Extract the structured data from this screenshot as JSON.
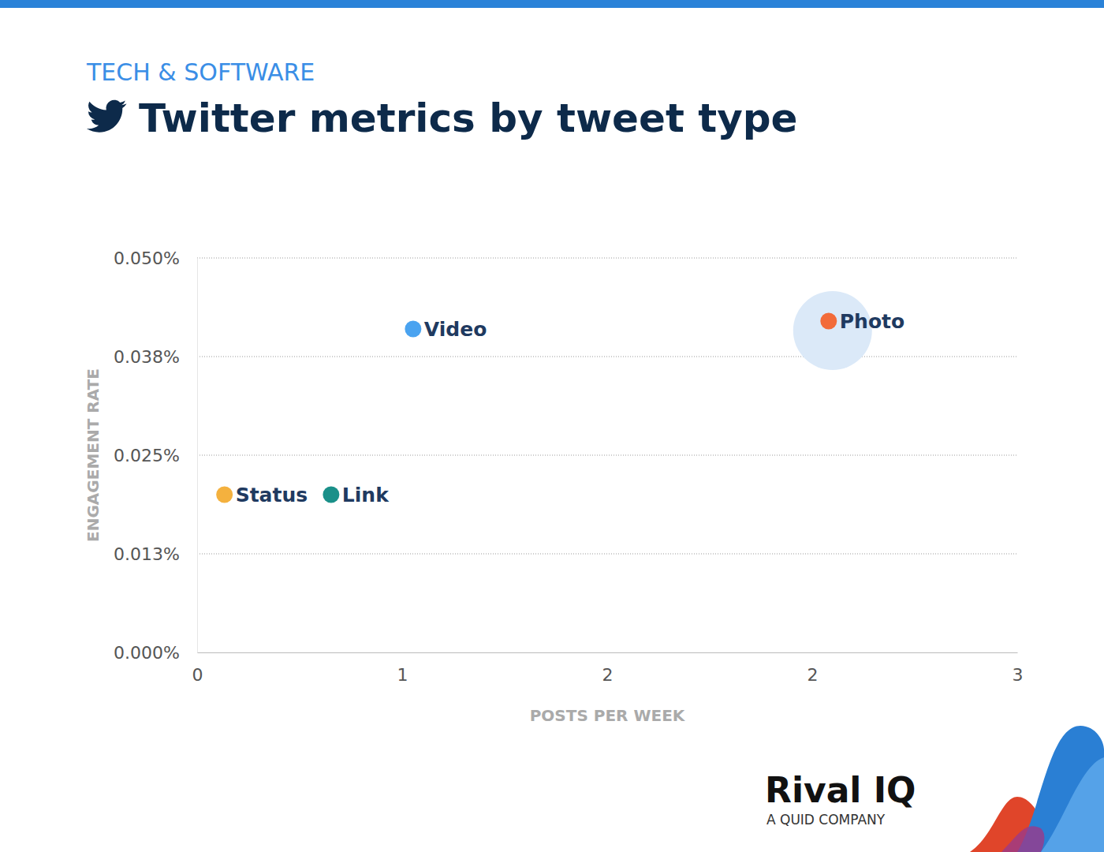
{
  "chart_data": {
    "type": "scatter",
    "title": "Twitter metrics by tweet type",
    "subtitle": "TECH & SOFTWARE",
    "x_label": "POSTS PER WEEK",
    "y_label": "ENGAGEMENT RATE",
    "annotations": [
      "Rival IQ",
      "A QUID COMPANY"
    ],
    "series": [
      {
        "name": "Status",
        "color": "#f4b13e",
        "x": [
          0.1
        ],
        "values": [
          0.02
        ]
      },
      {
        "name": "Link",
        "color": "#1a9089",
        "x": [
          0.49
        ],
        "values": [
          0.02
        ]
      },
      {
        "name": "Video",
        "color": "#4aa3f0",
        "x": [
          0.79
        ],
        "values": [
          0.041
        ]
      },
      {
        "name": "Photo",
        "color": "#f26b3a",
        "x": [
          2.31
        ],
        "values": [
          0.042
        ]
      }
    ],
    "xlim": [
      0,
      3
    ],
    "xticks": [
      0,
      {
        "value": 0.75,
        "label": "1"
      },
      {
        "value": 1.5,
        "label": "2"
      },
      {
        "value": 2.25,
        "label": "2"
      },
      3
    ],
    "ylim": [
      0,
      0.05
    ],
    "yticks": [
      {
        "value": 0,
        "label": "0.000%"
      },
      {
        "value": 0.0125,
        "label": "0.013%"
      },
      {
        "value": 0.025,
        "label": "0.025%"
      },
      {
        "value": 0.0375,
        "label": "0.038%"
      },
      {
        "value": 0.05,
        "label": "0.050%"
      }
    ],
    "grid": true,
    "marker": "circle"
  }
}
